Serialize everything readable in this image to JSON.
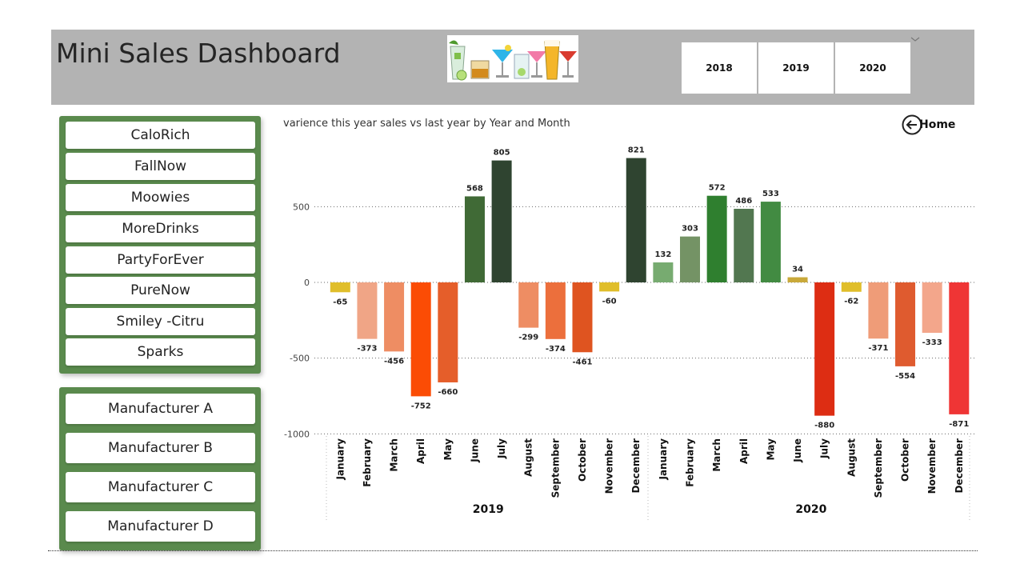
{
  "header": {
    "title": "Mini Sales Dashboard",
    "year_buttons": [
      "2018",
      "2019",
      "2020"
    ]
  },
  "brands": [
    "CaloRich",
    "FallNow",
    "Moowies",
    "MoreDrinks",
    "PartyForEver",
    "PureNow",
    "Smiley -Citru",
    "Sparks"
  ],
  "manufacturers": [
    "Manufacturer A",
    "Manufacturer B",
    "Manufacturer C",
    "Manufacturer D"
  ],
  "home": {
    "label": "Home"
  },
  "icons": {
    "home": "back-arrow-circle-icon",
    "chevron": "chevron-down-icon"
  },
  "chart_data": {
    "type": "bar",
    "title": "varience this year sales vs last year by Year and Month",
    "xlabel": "",
    "ylabel": "",
    "ylim": [
      -1000,
      821
    ],
    "y_ticks": [
      500,
      0,
      -500,
      -1000
    ],
    "grid": true,
    "groups": [
      {
        "year": "2019",
        "months": [
          "January",
          "February",
          "March",
          "April",
          "May",
          "June",
          "July",
          "August",
          "September",
          "October",
          "November",
          "December"
        ]
      },
      {
        "year": "2020",
        "months": [
          "January",
          "February",
          "March",
          "April",
          "May",
          "June",
          "July",
          "August",
          "September",
          "October",
          "November",
          "December"
        ]
      }
    ],
    "values": [
      -65,
      -373,
      -456,
      -752,
      -660,
      568,
      805,
      -299,
      -374,
      -461,
      -60,
      821,
      132,
      303,
      572,
      486,
      533,
      34,
      -880,
      -62,
      -371,
      -554,
      -333,
      -871
    ],
    "colors": [
      "#e0be2b",
      "#f0a586",
      "#ee8d63",
      "#fb4c05",
      "#e55e2a",
      "#406a36",
      "#2f4430",
      "#ee8d63",
      "#ec6f3c",
      "#df5420",
      "#e0be2b",
      "#2f4430",
      "#77ab70",
      "#749365",
      "#2f7f2f",
      "#527750",
      "#428b42",
      "#c9a93a",
      "#dd2d13",
      "#e0be2b",
      "#ef9c78",
      "#df5b2f",
      "#f3a68b",
      "#ef3535"
    ]
  }
}
